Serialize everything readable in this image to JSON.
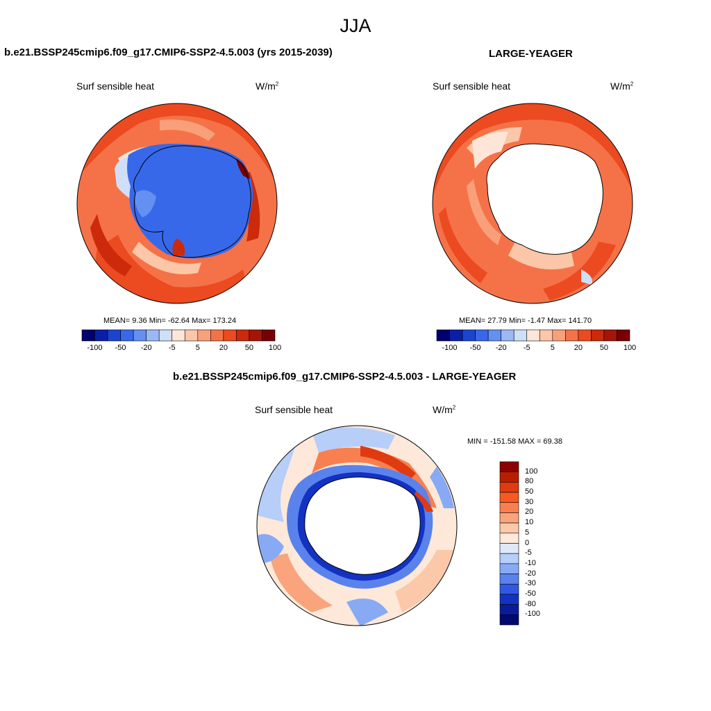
{
  "figure_title": "JJA",
  "panels": {
    "model": {
      "title": "b.e21.BSSP245cmip6.f09_g17.CMIP6-SSP2-4.5.003 (yrs 2015-2039)",
      "variable": "Surf sensible heat",
      "units_base": "W/m",
      "units_exp": "2",
      "stats": "MEAN=   9.36  Min= -62.64  Max= 173.24",
      "mean": 9.36,
      "min": -62.64,
      "max": 173.24,
      "colorbar_ticks": [
        "-100",
        "-50",
        "-20",
        "-5",
        "5",
        "20",
        "50",
        "100"
      ]
    },
    "obs": {
      "title": "LARGE-YEAGER",
      "variable": "Surf sensible heat",
      "units_base": "W/m",
      "units_exp": "2",
      "stats": "MEAN=  27.79  Min=  -1.47  Max= 141.70",
      "mean": 27.79,
      "min": -1.47,
      "max": 141.7,
      "colorbar_ticks": [
        "-100",
        "-50",
        "-20",
        "-5",
        "5",
        "20",
        "50",
        "100"
      ]
    },
    "diff": {
      "title": "b.e21.BSSP245cmip6.f09_g17.CMIP6-SSP2-4.5.003 - LARGE-YEAGER",
      "variable": "Surf sensible heat",
      "units_base": "W/m",
      "units_exp": "2",
      "stats": "MIN = -151.58 MAX =  69.38",
      "min": -151.58,
      "max": 69.38,
      "colorbar_ticks": [
        "100",
        "80",
        "50",
        "30",
        "20",
        "10",
        "5",
        "0",
        "-5",
        "-10",
        "-20",
        "-30",
        "-50",
        "-80",
        "-100"
      ]
    }
  },
  "colors": {
    "seq_main": [
      "#00006e",
      "#0a1fa8",
      "#1c44d0",
      "#3868ea",
      "#6490f2",
      "#9cb8f4",
      "#cfdff8",
      "#fde6d8",
      "#fcc6a8",
      "#f9a07a",
      "#f57248",
      "#ec4a20",
      "#cc2a0a",
      "#a41506",
      "#780004"
    ],
    "seq_diff": [
      "#8b0000",
      "#b81f00",
      "#e03a10",
      "#f65a22",
      "#f88050",
      "#f9a47c",
      "#fbc8aa",
      "#fde8da",
      "#dde8f8",
      "#b6cef8",
      "#88aaf4",
      "#5a82ec",
      "#3058e2",
      "#1432c2",
      "#0a1b9a",
      "#020870"
    ],
    "land": "#ffffff",
    "outline": "#000000"
  }
}
